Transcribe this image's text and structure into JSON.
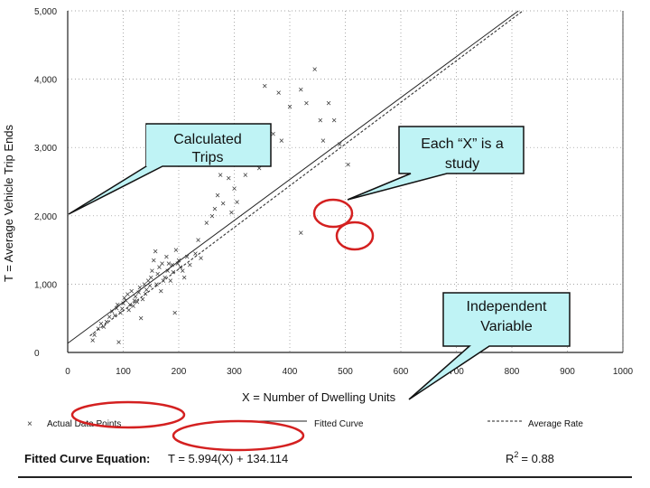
{
  "chart_data": {
    "type": "scatter",
    "title": "",
    "xlabel": "X = Number of Dwelling Units",
    "ylabel": "T = Average Vehicle Trip Ends",
    "xlim": [
      0,
      1000
    ],
    "ylim": [
      0,
      5000
    ],
    "x_ticks": [
      "0",
      "100",
      "200",
      "300",
      "400",
      "500",
      "600",
      "700",
      "800",
      "900",
      "1000"
    ],
    "y_ticks": [
      "0",
      "1,000",
      "2,000",
      "3,000",
      "4,000",
      "5,000"
    ],
    "grid": "dotted",
    "points": [
      [
        45,
        180
      ],
      [
        48,
        260
      ],
      [
        55,
        350
      ],
      [
        60,
        420
      ],
      [
        65,
        380
      ],
      [
        70,
        450
      ],
      [
        75,
        520
      ],
      [
        80,
        600
      ],
      [
        85,
        540
      ],
      [
        88,
        650
      ],
      [
        90,
        700
      ],
      [
        92,
        150
      ],
      [
        95,
        580
      ],
      [
        98,
        640
      ],
      [
        100,
        720
      ],
      [
        102,
        800
      ],
      [
        105,
        760
      ],
      [
        108,
        850
      ],
      [
        110,
        620
      ],
      [
        112,
        700
      ],
      [
        115,
        900
      ],
      [
        118,
        680
      ],
      [
        120,
        760
      ],
      [
        122,
        820
      ],
      [
        125,
        740
      ],
      [
        128,
        880
      ],
      [
        130,
        950
      ],
      [
        132,
        500
      ],
      [
        135,
        780
      ],
      [
        138,
        1000
      ],
      [
        140,
        860
      ],
      [
        142,
        920
      ],
      [
        145,
        1050
      ],
      [
        148,
        980
      ],
      [
        150,
        1100
      ],
      [
        152,
        1200
      ],
      [
        155,
        1350
      ],
      [
        158,
        1480
      ],
      [
        160,
        1000
      ],
      [
        162,
        1150
      ],
      [
        165,
        1250
      ],
      [
        168,
        900
      ],
      [
        170,
        1300
      ],
      [
        172,
        1050
      ],
      [
        175,
        1100
      ],
      [
        178,
        1400
      ],
      [
        180,
        1200
      ],
      [
        182,
        1300
      ],
      [
        185,
        1050
      ],
      [
        188,
        1280
      ],
      [
        190,
        1180
      ],
      [
        193,
        580
      ],
      [
        195,
        1500
      ],
      [
        198,
        1300
      ],
      [
        200,
        1350
      ],
      [
        203,
        1250
      ],
      [
        207,
        1200
      ],
      [
        210,
        1100
      ],
      [
        215,
        1400
      ],
      [
        220,
        1280
      ],
      [
        230,
        1450
      ],
      [
        235,
        1650
      ],
      [
        240,
        1380
      ],
      [
        250,
        1900
      ],
      [
        260,
        2000
      ],
      [
        265,
        2100
      ],
      [
        270,
        2300
      ],
      [
        275,
        2600
      ],
      [
        280,
        2180
      ],
      [
        290,
        2550
      ],
      [
        295,
        2050
      ],
      [
        300,
        2400
      ],
      [
        305,
        2200
      ],
      [
        310,
        2800
      ],
      [
        320,
        2600
      ],
      [
        330,
        2800
      ],
      [
        345,
        2700
      ],
      [
        355,
        3900
      ],
      [
        370,
        3200
      ],
      [
        385,
        3100
      ],
      [
        400,
        3600
      ],
      [
        420,
        3850
      ],
      [
        430,
        3650
      ],
      [
        445,
        4150
      ],
      [
        455,
        3400
      ],
      [
        460,
        3100
      ],
      [
        470,
        3650
      ],
      [
        480,
        3400
      ],
      [
        490,
        3050
      ],
      [
        505,
        2750
      ],
      [
        420,
        1750
      ],
      [
        380,
        3800
      ]
    ],
    "fitted_curve": {
      "name": "Fitted Curve",
      "equation": "T = 5.994(X) + 134.114",
      "slope": 5.994,
      "intercept": 134.114
    },
    "average_rate": {
      "name": "Average Rate",
      "slope": 6.1
    },
    "r_squared": "0.88",
    "legend": {
      "actual": "Actual Data Points",
      "fitted": "Fitted Curve",
      "average": "Average Rate"
    },
    "equation_label": "Fitted Curve Equation:",
    "equation_value": "T = 5.994(X) + 134.114",
    "r2_label": "R",
    "r2_sup": "2",
    "r2_value": "= 0.88"
  },
  "callouts": {
    "calculated": [
      "Calculated",
      "Trips"
    ],
    "study": [
      "Each “X” is a",
      "study"
    ],
    "independent": [
      "Independent",
      "Variable"
    ]
  },
  "colors": {
    "callout_fill": "#bff3f5",
    "circle": "#d42020",
    "axis": "#222222"
  }
}
